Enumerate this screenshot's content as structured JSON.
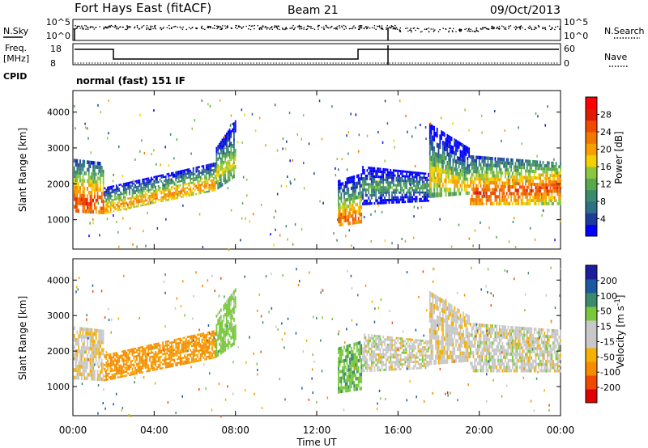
{
  "header": {
    "station": "Fort Hays East (fitACF)",
    "beam": "Beam 21",
    "date": "09/Oct/2013"
  },
  "noise_panel": {
    "left_label": "N.Sky",
    "right_label": "N.Search",
    "left_ticks": [
      "10^5",
      "10^0"
    ],
    "right_ticks": [
      "10^5",
      "10^0"
    ]
  },
  "freq_panel": {
    "left_label_1": "Freq.",
    "left_label_2": "[MHz]",
    "left_ticks": [
      "18",
      "8"
    ],
    "right_label": "Nave",
    "right_ticks": [
      "60",
      "0"
    ]
  },
  "cpid": {
    "label": "CPID",
    "text": "normal (fast) 151 IF"
  },
  "xaxis": {
    "label": "Time UT",
    "ticks": [
      "00:00",
      "04:00",
      "08:00",
      "12:00",
      "16:00",
      "20:00",
      "00:00"
    ]
  },
  "colors": {
    "scale": [
      "#0000ff",
      "#1c3c9c",
      "#2f6e87",
      "#3c8a6c",
      "#58a84c",
      "#8cc63f",
      "#f5d000",
      "#f5a000",
      "#f27800",
      "#ef4a00",
      "#e01b00",
      "#ff0000"
    ],
    "velocity": [
      "#e00000",
      "#f04a00",
      "#f58c00",
      "#f5b000",
      "#c8c8c8",
      "#c8c8c8",
      "#78c83c",
      "#3c8a6c",
      "#1c5aa0",
      "#1c1c9c"
    ],
    "ground": "#c8c8c8"
  },
  "chart_data": [
    {
      "type": "heatmap",
      "title": "Power",
      "ylabel": "Slant Range [km]",
      "xlabel": "",
      "xlim": [
        0,
        24
      ],
      "ylim": [
        180,
        4600
      ],
      "yticks": [
        "1000",
        "2000",
        "3000",
        "4000"
      ],
      "colorbar": {
        "label": "Power [dB]",
        "ticks": [
          "4",
          "8",
          "12",
          "16",
          "20",
          "24",
          "28"
        ],
        "range": [
          0,
          32
        ]
      },
      "bands": [
        {
          "t": [
            0.0,
            1.5
          ],
          "r_lo": [
            1200,
            1150
          ],
          "r_hi": [
            2700,
            2600
          ],
          "core": [
            1500,
            1450
          ],
          "level": 27
        },
        {
          "t": [
            1.5,
            7.0
          ],
          "r_lo": [
            1150,
            1800
          ],
          "r_hi": [
            1900,
            2600
          ],
          "core": [
            1300,
            2000
          ],
          "level": 22
        },
        {
          "t": [
            7.0,
            8.0
          ],
          "r_lo": [
            1800,
            2200
          ],
          "r_hi": [
            3000,
            3800
          ],
          "core": [
            2300,
            2600
          ],
          "level": 18
        },
        {
          "t": [
            13.0,
            14.2
          ],
          "r_lo": [
            800,
            900
          ],
          "r_hi": [
            2100,
            2300
          ],
          "core": [
            1000,
            1100
          ],
          "level": 24
        },
        {
          "t": [
            14.2,
            17.5
          ],
          "r_lo": [
            1400,
            1500
          ],
          "r_hi": [
            2500,
            2300
          ],
          "core": [
            1900,
            1900
          ],
          "level": 12
        },
        {
          "t": [
            17.5,
            19.5
          ],
          "r_lo": [
            1600,
            1700
          ],
          "r_hi": [
            3700,
            3000
          ],
          "core": [
            2200,
            1900
          ],
          "level": 19
        },
        {
          "t": [
            19.5,
            24.0
          ],
          "r_lo": [
            1400,
            1400
          ],
          "r_hi": [
            2800,
            2600
          ],
          "core": [
            1700,
            1900
          ],
          "level": 26
        }
      ]
    },
    {
      "type": "heatmap",
      "title": "Velocity",
      "ylabel": "Slant Range [km]",
      "xlabel": "Time UT",
      "xlim": [
        0,
        24
      ],
      "ylim": [
        180,
        4600
      ],
      "yticks": [
        "1000",
        "2000",
        "3000",
        "4000"
      ],
      "colorbar": {
        "label": "Velocity [m s^-1]",
        "ticks": [
          "200",
          "100",
          "50",
          "15",
          "-15",
          "-50",
          "-100",
          "-200"
        ],
        "range": [
          -250,
          250
        ]
      },
      "bands": [
        {
          "t": [
            0.0,
            1.5
          ],
          "r_lo": [
            1200,
            1150
          ],
          "r_hi": [
            2700,
            2600
          ],
          "v": -10
        },
        {
          "t": [
            1.5,
            7.0
          ],
          "r_lo": [
            1150,
            1800
          ],
          "r_hi": [
            1900,
            2600
          ],
          "v": -60
        },
        {
          "t": [
            7.0,
            8.0
          ],
          "r_lo": [
            1800,
            2200
          ],
          "r_hi": [
            3000,
            3800
          ],
          "v": 30
        },
        {
          "t": [
            13.0,
            14.2
          ],
          "r_lo": [
            800,
            900
          ],
          "r_hi": [
            2100,
            2300
          ],
          "v": 40
        },
        {
          "t": [
            14.2,
            17.5
          ],
          "r_lo": [
            1400,
            1500
          ],
          "r_hi": [
            2500,
            2300
          ],
          "v": 0
        },
        {
          "t": [
            17.5,
            19.5
          ],
          "r_lo": [
            1600,
            1700
          ],
          "r_hi": [
            3700,
            3000
          ],
          "v": -5
        },
        {
          "t": [
            19.5,
            24.0
          ],
          "r_lo": [
            1400,
            1400
          ],
          "r_hi": [
            2800,
            2600
          ],
          "v": 0
        }
      ]
    }
  ]
}
